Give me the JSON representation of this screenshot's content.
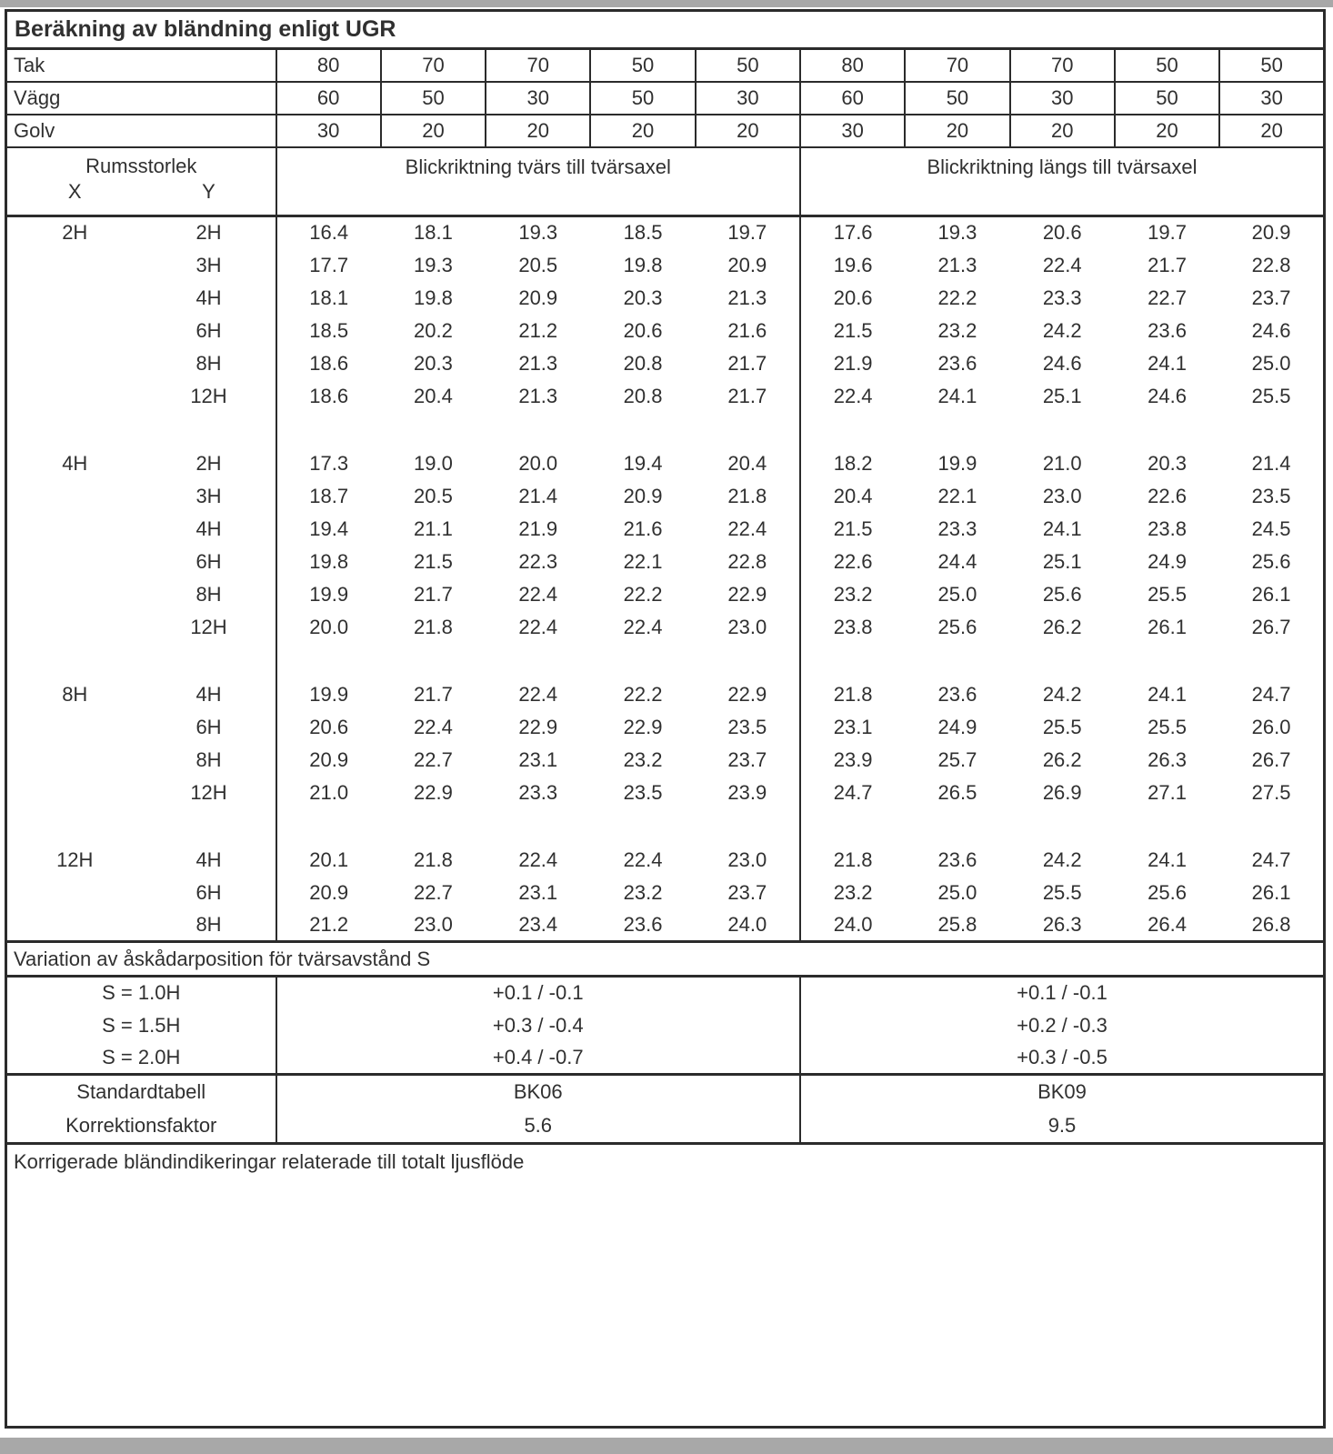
{
  "title": "Beräkning av bländning enligt UGR",
  "reflectance_rows": [
    {
      "label": "Tak",
      "values": [
        "80",
        "70",
        "70",
        "50",
        "50",
        "80",
        "70",
        "70",
        "50",
        "50"
      ]
    },
    {
      "label": "Vägg",
      "values": [
        "60",
        "50",
        "30",
        "50",
        "30",
        "60",
        "50",
        "30",
        "50",
        "30"
      ]
    },
    {
      "label": "Golv",
      "values": [
        "30",
        "20",
        "20",
        "20",
        "20",
        "30",
        "20",
        "20",
        "20",
        "20"
      ]
    }
  ],
  "room_header": {
    "label": "Rumsstorlek",
    "x": "X",
    "y": "Y"
  },
  "sections": [
    "Blickriktning tvärs till tvärsaxel",
    "Blickriktning längs till tvärsaxel"
  ],
  "blocks": [
    {
      "x": "2H",
      "rows": [
        {
          "y": "2H",
          "tvars": [
            "16.4",
            "18.1",
            "19.3",
            "18.5",
            "19.7"
          ],
          "langs": [
            "17.6",
            "19.3",
            "20.6",
            "19.7",
            "20.9"
          ]
        },
        {
          "y": "3H",
          "tvars": [
            "17.7",
            "19.3",
            "20.5",
            "19.8",
            "20.9"
          ],
          "langs": [
            "19.6",
            "21.3",
            "22.4",
            "21.7",
            "22.8"
          ]
        },
        {
          "y": "4H",
          "tvars": [
            "18.1",
            "19.8",
            "20.9",
            "20.3",
            "21.3"
          ],
          "langs": [
            "20.6",
            "22.2",
            "23.3",
            "22.7",
            "23.7"
          ]
        },
        {
          "y": "6H",
          "tvars": [
            "18.5",
            "20.2",
            "21.2",
            "20.6",
            "21.6"
          ],
          "langs": [
            "21.5",
            "23.2",
            "24.2",
            "23.6",
            "24.6"
          ]
        },
        {
          "y": "8H",
          "tvars": [
            "18.6",
            "20.3",
            "21.3",
            "20.8",
            "21.7"
          ],
          "langs": [
            "21.9",
            "23.6",
            "24.6",
            "24.1",
            "25.0"
          ]
        },
        {
          "y": "12H",
          "tvars": [
            "18.6",
            "20.4",
            "21.3",
            "20.8",
            "21.7"
          ],
          "langs": [
            "22.4",
            "24.1",
            "25.1",
            "24.6",
            "25.5"
          ]
        }
      ]
    },
    {
      "x": "4H",
      "rows": [
        {
          "y": "2H",
          "tvars": [
            "17.3",
            "19.0",
            "20.0",
            "19.4",
            "20.4"
          ],
          "langs": [
            "18.2",
            "19.9",
            "21.0",
            "20.3",
            "21.4"
          ]
        },
        {
          "y": "3H",
          "tvars": [
            "18.7",
            "20.5",
            "21.4",
            "20.9",
            "21.8"
          ],
          "langs": [
            "20.4",
            "22.1",
            "23.0",
            "22.6",
            "23.5"
          ]
        },
        {
          "y": "4H",
          "tvars": [
            "19.4",
            "21.1",
            "21.9",
            "21.6",
            "22.4"
          ],
          "langs": [
            "21.5",
            "23.3",
            "24.1",
            "23.8",
            "24.5"
          ]
        },
        {
          "y": "6H",
          "tvars": [
            "19.8",
            "21.5",
            "22.3",
            "22.1",
            "22.8"
          ],
          "langs": [
            "22.6",
            "24.4",
            "25.1",
            "24.9",
            "25.6"
          ]
        },
        {
          "y": "8H",
          "tvars": [
            "19.9",
            "21.7",
            "22.4",
            "22.2",
            "22.9"
          ],
          "langs": [
            "23.2",
            "25.0",
            "25.6",
            "25.5",
            "26.1"
          ]
        },
        {
          "y": "12H",
          "tvars": [
            "20.0",
            "21.8",
            "22.4",
            "22.4",
            "23.0"
          ],
          "langs": [
            "23.8",
            "25.6",
            "26.2",
            "26.1",
            "26.7"
          ]
        }
      ]
    },
    {
      "x": "8H",
      "rows": [
        {
          "y": "4H",
          "tvars": [
            "19.9",
            "21.7",
            "22.4",
            "22.2",
            "22.9"
          ],
          "langs": [
            "21.8",
            "23.6",
            "24.2",
            "24.1",
            "24.7"
          ]
        },
        {
          "y": "6H",
          "tvars": [
            "20.6",
            "22.4",
            "22.9",
            "22.9",
            "23.5"
          ],
          "langs": [
            "23.1",
            "24.9",
            "25.5",
            "25.5",
            "26.0"
          ]
        },
        {
          "y": "8H",
          "tvars": [
            "20.9",
            "22.7",
            "23.1",
            "23.2",
            "23.7"
          ],
          "langs": [
            "23.9",
            "25.7",
            "26.2",
            "26.3",
            "26.7"
          ]
        },
        {
          "y": "12H",
          "tvars": [
            "21.0",
            "22.9",
            "23.3",
            "23.5",
            "23.9"
          ],
          "langs": [
            "24.7",
            "26.5",
            "26.9",
            "27.1",
            "27.5"
          ]
        }
      ]
    },
    {
      "x": "12H",
      "rows": [
        {
          "y": "4H",
          "tvars": [
            "20.1",
            "21.8",
            "22.4",
            "22.4",
            "23.0"
          ],
          "langs": [
            "21.8",
            "23.6",
            "24.2",
            "24.1",
            "24.7"
          ]
        },
        {
          "y": "6H",
          "tvars": [
            "20.9",
            "22.7",
            "23.1",
            "23.2",
            "23.7"
          ],
          "langs": [
            "23.2",
            "25.0",
            "25.5",
            "25.6",
            "26.1"
          ]
        },
        {
          "y": "8H",
          "tvars": [
            "21.2",
            "23.0",
            "23.4",
            "23.6",
            "24.0"
          ],
          "langs": [
            "24.0",
            "25.8",
            "26.3",
            "26.4",
            "26.8"
          ]
        }
      ]
    }
  ],
  "variation": {
    "header": "Variation av åskådarposition för tvärsavstånd S",
    "rows": [
      {
        "label": "S = 1.0H",
        "tvars": "+0.1 / -0.1",
        "langs": "+0.1 / -0.1"
      },
      {
        "label": "S = 1.5H",
        "tvars": "+0.3 / -0.4",
        "langs": "+0.2 / -0.3"
      },
      {
        "label": "S = 2.0H",
        "tvars": "+0.4 / -0.7",
        "langs": "+0.3 / -0.5"
      }
    ]
  },
  "summary": {
    "rows": [
      {
        "label": "Standardtabell",
        "tvars": "BK06",
        "langs": "BK09"
      },
      {
        "label": "Korrektionsfaktor",
        "tvars": "5.6",
        "langs": "9.5"
      }
    ]
  },
  "footer": "Korrigerade bländindikeringar relaterade till totalt ljusflöde",
  "colors": {
    "border": "#2b2b2b",
    "text": "#303030",
    "band": "#a8a8a8",
    "background": "#ffffff"
  }
}
